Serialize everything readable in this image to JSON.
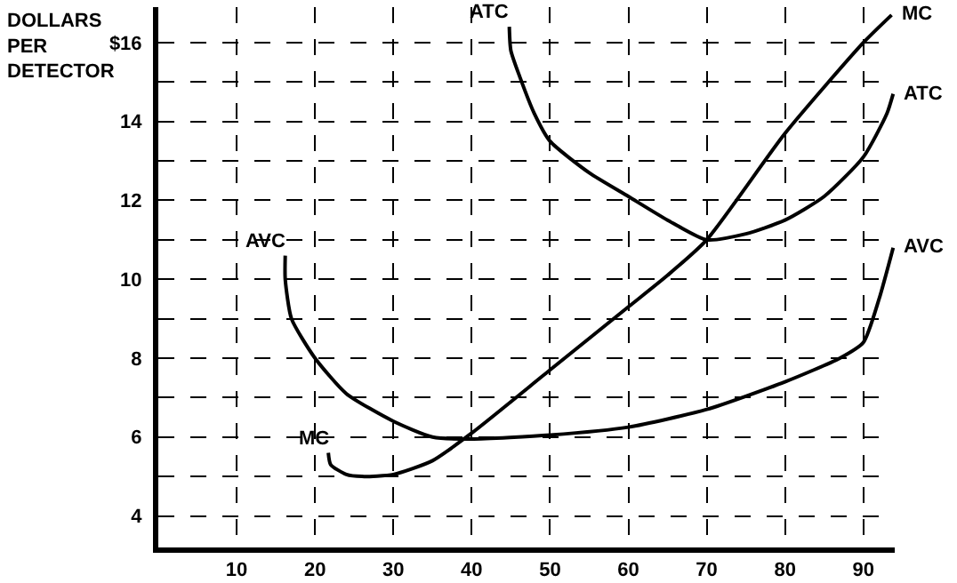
{
  "chart_data": {
    "type": "line",
    "ylabel": "DOLLARS PER DETECTOR",
    "xlim": [
      0,
      94
    ],
    "ylim": [
      3.2,
      16.9
    ],
    "xticks": [
      10,
      20,
      30,
      40,
      50,
      60,
      70,
      80,
      90
    ],
    "yticks": [
      4,
      {
        "value": 5,
        "label": null
      },
      6,
      {
        "value": 7,
        "label": null
      },
      8,
      {
        "value": 9,
        "label": null
      },
      10,
      {
        "value": 11,
        "label": null
      },
      12,
      {
        "value": 13,
        "label": null
      },
      14,
      {
        "value": 15,
        "label": null
      },
      {
        "value": 16,
        "label": "$16"
      }
    ],
    "grid": true,
    "legend": false,
    "marker": "none",
    "line_style": "solid",
    "series": [
      {
        "name": "MC",
        "color": "#000000",
        "x": [
          21.7,
          22,
          24,
          26,
          30,
          35,
          40,
          50,
          60,
          65,
          70,
          80,
          90,
          93.6
        ],
        "values": [
          5.6,
          5.3,
          5.05,
          5,
          5.05,
          5.4,
          6.1,
          7.7,
          9.3,
          10.1,
          11,
          13.7,
          16,
          16.7
        ]
      },
      {
        "name": "ATC",
        "color": "#000000",
        "x": [
          44.8,
          45,
          46.2,
          48,
          50,
          55,
          60,
          65,
          70,
          75,
          80,
          85,
          90,
          93,
          93.8
        ],
        "values": [
          16.4,
          15.8,
          15.1,
          14.2,
          13.5,
          12.7,
          12.1,
          11.5,
          11,
          11.15,
          11.5,
          12.1,
          13.1,
          14.2,
          14.7
        ]
      },
      {
        "name": "AVC",
        "color": "#000000",
        "x": [
          16.2,
          16.2,
          17,
          20,
          24,
          30,
          35,
          40,
          50,
          60,
          70,
          80,
          87,
          90,
          92,
          93.8
        ],
        "values": [
          10.6,
          10,
          9,
          8,
          7.1,
          6.4,
          6,
          5.95,
          6.05,
          6.25,
          6.7,
          7.4,
          8,
          8.4,
          9.5,
          10.8
        ]
      }
    ]
  }
}
